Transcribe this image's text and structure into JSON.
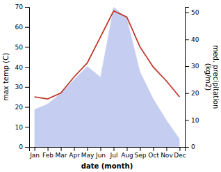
{
  "chart_data": {
    "type": "line",
    "xlabel": "date (month)",
    "ylabel": "max temp (C)",
    "y2label": "med. precipitation\n(kg/m2)",
    "categories": [
      "Jan",
      "Feb",
      "Mar",
      "Apr",
      "May",
      "Jun",
      "Jul",
      "Aug",
      "Sep",
      "Oct",
      "Nov",
      "Dec"
    ],
    "series": [
      {
        "type": "area",
        "color": "#c5cef0",
        "axis": "y2",
        "values": [
          14,
          16,
          20,
          25,
          30,
          26,
          52,
          48,
          28,
          18,
          10,
          3
        ]
      },
      {
        "type": "line",
        "color": "#c0392b",
        "values": [
          25,
          24,
          27,
          35,
          42,
          55,
          68,
          65,
          50,
          40,
          33,
          25
        ]
      }
    ],
    "ylim": [
      0,
      70
    ],
    "yticks": [
      0,
      10,
      20,
      30,
      40,
      50,
      60,
      70
    ],
    "y2lim": [
      0,
      52
    ],
    "y2ticks": [
      0,
      10,
      20,
      30,
      40,
      50
    ],
    "grid": false
  }
}
